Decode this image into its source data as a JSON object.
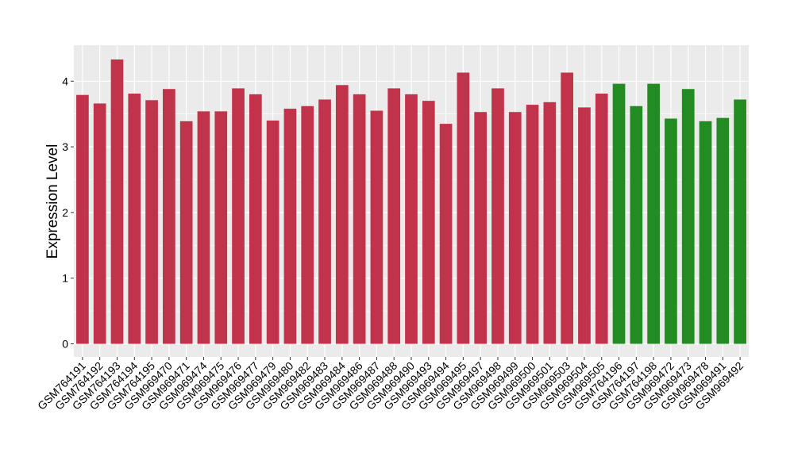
{
  "chart_data": {
    "type": "bar",
    "ylabel": "Expression Level",
    "xlabel": "",
    "ylim": [
      -0.2,
      4.55
    ],
    "yticks": [
      0,
      1,
      2,
      3,
      4
    ],
    "grid": true,
    "panel_background": "#ebebeb",
    "gridline_color": "#ffffff",
    "group_colors": {
      "group1": "#c0334a",
      "group2": "#228b22"
    },
    "categories": [
      "GSM764191",
      "GSM764192",
      "GSM764193",
      "GSM764194",
      "GSM764195",
      "GSM969470",
      "GSM969471",
      "GSM969474",
      "GSM969475",
      "GSM969476",
      "GSM969477",
      "GSM969479",
      "GSM969480",
      "GSM969482",
      "GSM969483",
      "GSM969484",
      "GSM969486",
      "GSM969487",
      "GSM969488",
      "GSM969490",
      "GSM969493",
      "GSM969494",
      "GSM969495",
      "GSM969497",
      "GSM969498",
      "GSM969499",
      "GSM969500",
      "GSM969501",
      "GSM969503",
      "GSM969504",
      "GSM969505",
      "GSM764196",
      "GSM764197",
      "GSM764198",
      "GSM969472",
      "GSM969473",
      "GSM969478",
      "GSM969491",
      "GSM969492"
    ],
    "values": [
      3.79,
      3.66,
      4.33,
      3.81,
      3.71,
      3.88,
      3.39,
      3.54,
      3.54,
      3.89,
      3.8,
      3.4,
      3.58,
      3.62,
      3.72,
      3.94,
      3.8,
      3.55,
      3.89,
      3.8,
      3.7,
      3.35,
      4.13,
      3.53,
      3.89,
      3.53,
      3.64,
      3.68,
      4.13,
      3.6,
      3.81,
      3.96,
      3.62,
      3.96,
      3.43,
      3.88,
      3.39,
      3.44,
      3.72
    ],
    "groups": [
      "group1",
      "group1",
      "group1",
      "group1",
      "group1",
      "group1",
      "group1",
      "group1",
      "group1",
      "group1",
      "group1",
      "group1",
      "group1",
      "group1",
      "group1",
      "group1",
      "group1",
      "group1",
      "group1",
      "group1",
      "group1",
      "group1",
      "group1",
      "group1",
      "group1",
      "group1",
      "group1",
      "group1",
      "group1",
      "group1",
      "group1",
      "group2",
      "group2",
      "group2",
      "group2",
      "group2",
      "group2",
      "group2",
      "group2"
    ]
  }
}
